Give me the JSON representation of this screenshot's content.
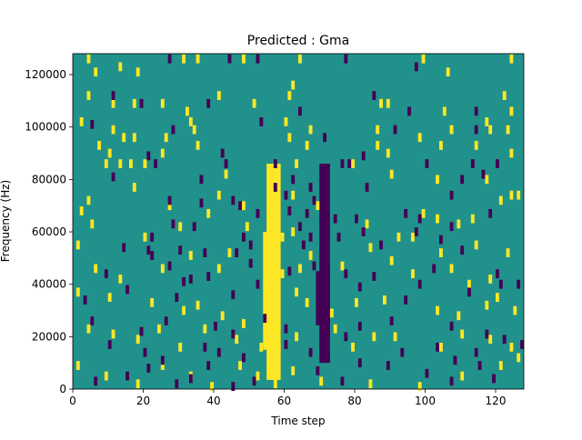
{
  "chart_data": {
    "type": "heatmap",
    "title": "Predicted : Gma",
    "xlabel": "Time step",
    "ylabel": "Frequency (Hz)",
    "xlim": [
      0,
      128
    ],
    "ylim": [
      0,
      128000
    ],
    "x_ticks": [
      0,
      20,
      40,
      60,
      80,
      100,
      120
    ],
    "y_ticks": [
      0,
      20000,
      40000,
      60000,
      80000,
      100000,
      120000
    ],
    "y_tick_labels": [
      "0",
      "20000",
      "40000",
      "60000",
      "80000",
      "100000",
      "120000"
    ],
    "grid": false,
    "legend": "none",
    "colormap": "viridis",
    "colors": {
      "background": "#21918c",
      "high": "#fde725",
      "low": "#440154"
    },
    "bands": [
      {
        "value": "high",
        "x": [
          55,
          59
        ],
        "y": [
          3500,
          86000
        ]
      },
      {
        "value": "high",
        "x": [
          54,
          58
        ],
        "y": [
          15000,
          60000
        ]
      },
      {
        "value": "low",
        "x": [
          70,
          73
        ],
        "y": [
          10000,
          86000
        ]
      },
      {
        "value": "low",
        "x": [
          69,
          73
        ],
        "y": [
          25000,
          45000
        ]
      }
    ],
    "yellow_cells": [
      [
        4,
        126000
      ],
      [
        6,
        121000
      ],
      [
        13,
        123000
      ],
      [
        18,
        121000
      ],
      [
        31,
        126000
      ],
      [
        35,
        126000
      ],
      [
        48,
        126000
      ],
      [
        64,
        126000
      ],
      [
        99,
        126000
      ],
      [
        106,
        121000
      ],
      [
        124,
        126000
      ],
      [
        4,
        112000
      ],
      [
        11,
        109000
      ],
      [
        17,
        109000
      ],
      [
        25,
        109000
      ],
      [
        32,
        106000
      ],
      [
        41,
        112000
      ],
      [
        51,
        109000
      ],
      [
        61,
        112000
      ],
      [
        62,
        116000
      ],
      [
        87,
        109000
      ],
      [
        89,
        109000
      ],
      [
        105,
        106000
      ],
      [
        122,
        112000
      ],
      [
        124,
        106000
      ],
      [
        2,
        102000
      ],
      [
        11,
        99000
      ],
      [
        14,
        96000
      ],
      [
        17,
        96000
      ],
      [
        26,
        96000
      ],
      [
        33,
        102000
      ],
      [
        34,
        99000
      ],
      [
        60,
        102000
      ],
      [
        61,
        96000
      ],
      [
        67,
        99000
      ],
      [
        86,
        99000
      ],
      [
        98,
        96000
      ],
      [
        107,
        99000
      ],
      [
        117,
        102000
      ],
      [
        118,
        99000
      ],
      [
        123,
        99000
      ],
      [
        7,
        93000
      ],
      [
        10,
        90000
      ],
      [
        13,
        86000
      ],
      [
        16,
        86000
      ],
      [
        25,
        90000
      ],
      [
        35,
        93000
      ],
      [
        66,
        93000
      ],
      [
        86,
        93000
      ],
      [
        89,
        90000
      ],
      [
        104,
        93000
      ],
      [
        114,
        93000
      ],
      [
        124,
        90000
      ],
      [
        9,
        86000
      ],
      [
        20,
        86000
      ],
      [
        43,
        82000
      ],
      [
        63,
        86000
      ],
      [
        79,
        86000
      ],
      [
        90,
        82000
      ],
      [
        103,
        80000
      ],
      [
        117,
        80000
      ],
      [
        4,
        72000
      ],
      [
        17,
        77000
      ],
      [
        27,
        70000
      ],
      [
        38,
        67000
      ],
      [
        41,
        74000
      ],
      [
        48,
        70000
      ],
      [
        56,
        74000
      ],
      [
        62,
        74000
      ],
      [
        69,
        70000
      ],
      [
        83,
        63000
      ],
      [
        99,
        67000
      ],
      [
        103,
        65000
      ],
      [
        109,
        63000
      ],
      [
        113,
        65000
      ],
      [
        121,
        72000
      ],
      [
        124,
        74000
      ],
      [
        126,
        74000
      ],
      [
        1,
        55000
      ],
      [
        20,
        58000
      ],
      [
        30,
        62000
      ],
      [
        44,
        52000
      ],
      [
        49,
        62000
      ],
      [
        56,
        55000
      ],
      [
        59,
        58000
      ],
      [
        62,
        60000
      ],
      [
        84,
        54000
      ],
      [
        96,
        58000
      ],
      [
        104,
        52000
      ],
      [
        114,
        55000
      ],
      [
        123,
        52000
      ],
      [
        6,
        46000
      ],
      [
        13,
        42000
      ],
      [
        25,
        46000
      ],
      [
        33,
        51000
      ],
      [
        41,
        46000
      ],
      [
        59,
        44000
      ],
      [
        64,
        46000
      ],
      [
        67,
        51000
      ],
      [
        76,
        47000
      ],
      [
        90,
        49000
      ],
      [
        96,
        44000
      ],
      [
        107,
        46000
      ],
      [
        112,
        40000
      ],
      [
        118,
        42000
      ],
      [
        1,
        37000
      ],
      [
        10,
        35000
      ],
      [
        22,
        33000
      ],
      [
        31,
        30000
      ],
      [
        35,
        32000
      ],
      [
        42,
        28000
      ],
      [
        48,
        25000
      ],
      [
        55,
        33000
      ],
      [
        56,
        30000
      ],
      [
        63,
        37000
      ],
      [
        66,
        33000
      ],
      [
        73,
        29000
      ],
      [
        80,
        33000
      ],
      [
        88,
        34000
      ],
      [
        103,
        30000
      ],
      [
        109,
        28000
      ],
      [
        117,
        32000
      ],
      [
        120,
        35000
      ],
      [
        125,
        30000
      ],
      [
        4,
        23000
      ],
      [
        11,
        21000
      ],
      [
        18,
        19000
      ],
      [
        24,
        23000
      ],
      [
        30,
        16000
      ],
      [
        37,
        23000
      ],
      [
        46,
        19000
      ],
      [
        53,
        16000
      ],
      [
        56,
        23000
      ],
      [
        58,
        16000
      ],
      [
        63,
        20000
      ],
      [
        74,
        23000
      ],
      [
        79,
        16000
      ],
      [
        85,
        20000
      ],
      [
        91,
        20000
      ],
      [
        104,
        16000
      ],
      [
        110,
        21000
      ],
      [
        118,
        19000
      ],
      [
        124,
        16000
      ],
      [
        1,
        9000
      ],
      [
        9,
        5000
      ],
      [
        18,
        2000
      ],
      [
        25,
        9000
      ],
      [
        33,
        5000
      ],
      [
        39,
        1000
      ],
      [
        47,
        9000
      ],
      [
        52,
        5000
      ],
      [
        57,
        2000
      ],
      [
        62,
        7000
      ],
      [
        70,
        3000
      ],
      [
        84,
        2000
      ],
      [
        98,
        1000
      ],
      [
        110,
        5000
      ],
      [
        121,
        9000
      ],
      [
        126,
        12000
      ],
      [
        2,
        68000
      ],
      [
        5,
        63000
      ],
      [
        92,
        58000
      ]
    ],
    "purple_cells": [
      [
        27,
        126000
      ],
      [
        44,
        126000
      ],
      [
        52,
        126000
      ],
      [
        77,
        126000
      ],
      [
        97,
        123000
      ],
      [
        11,
        112000
      ],
      [
        19,
        109000
      ],
      [
        38,
        109000
      ],
      [
        64,
        106000
      ],
      [
        85,
        112000
      ],
      [
        95,
        106000
      ],
      [
        114,
        106000
      ],
      [
        5,
        101000
      ],
      [
        28,
        99000
      ],
      [
        53,
        102000
      ],
      [
        71,
        96000
      ],
      [
        91,
        99000
      ],
      [
        114,
        99000
      ],
      [
        21,
        89000
      ],
      [
        42,
        90000
      ],
      [
        57,
        86000
      ],
      [
        76,
        86000
      ],
      [
        78,
        86000
      ],
      [
        82,
        89000
      ],
      [
        100,
        86000
      ],
      [
        113,
        86000
      ],
      [
        120,
        86000
      ],
      [
        23,
        86000
      ],
      [
        43,
        86000
      ],
      [
        11,
        81000
      ],
      [
        36,
        80000
      ],
      [
        57,
        77000
      ],
      [
        60,
        74000
      ],
      [
        62,
        80000
      ],
      [
        67,
        77000
      ],
      [
        68,
        72000
      ],
      [
        83,
        77000
      ],
      [
        107,
        74000
      ],
      [
        110,
        80000
      ],
      [
        116,
        82000
      ],
      [
        27,
        72000
      ],
      [
        36,
        71000
      ],
      [
        45,
        72000
      ],
      [
        47,
        70000
      ],
      [
        52,
        67000
      ],
      [
        61,
        68000
      ],
      [
        66,
        67000
      ],
      [
        74,
        65000
      ],
      [
        80,
        65000
      ],
      [
        94,
        67000
      ],
      [
        98,
        65000
      ],
      [
        118,
        67000
      ],
      [
        22,
        58000
      ],
      [
        28,
        63000
      ],
      [
        34,
        62000
      ],
      [
        48,
        58000
      ],
      [
        64,
        62000
      ],
      [
        67,
        58000
      ],
      [
        75,
        58000
      ],
      [
        82,
        60000
      ],
      [
        87,
        55000
      ],
      [
        97,
        60000
      ],
      [
        107,
        62000
      ],
      [
        14,
        54000
      ],
      [
        21,
        53000
      ],
      [
        22,
        51000
      ],
      [
        37,
        52000
      ],
      [
        46,
        52000
      ],
      [
        50,
        55000
      ],
      [
        65,
        55000
      ],
      [
        71,
        54000
      ],
      [
        104,
        57000
      ],
      [
        110,
        53000
      ],
      [
        9,
        44000
      ],
      [
        27,
        47000
      ],
      [
        38,
        43000
      ],
      [
        50,
        48000
      ],
      [
        61,
        45000
      ],
      [
        68,
        47000
      ],
      [
        77,
        44000
      ],
      [
        85,
        43000
      ],
      [
        102,
        46000
      ],
      [
        120,
        44000
      ],
      [
        126,
        40000
      ],
      [
        3,
        34000
      ],
      [
        15,
        38000
      ],
      [
        29,
        35000
      ],
      [
        45,
        36000
      ],
      [
        52,
        40000
      ],
      [
        71,
        37000
      ],
      [
        81,
        39000
      ],
      [
        94,
        34000
      ],
      [
        98,
        40000
      ],
      [
        112,
        37000
      ],
      [
        121,
        40000
      ],
      [
        5,
        26000
      ],
      [
        19,
        22000
      ],
      [
        26,
        26000
      ],
      [
        40,
        24000
      ],
      [
        45,
        21000
      ],
      [
        54,
        27000
      ],
      [
        60,
        23000
      ],
      [
        69,
        26000
      ],
      [
        77,
        20000
      ],
      [
        81,
        24000
      ],
      [
        90,
        26000
      ],
      [
        107,
        24000
      ],
      [
        117,
        21000
      ],
      [
        122,
        19000
      ],
      [
        10,
        17000
      ],
      [
        20,
        14000
      ],
      [
        25,
        11000
      ],
      [
        37,
        16000
      ],
      [
        41,
        14000
      ],
      [
        48,
        12000
      ],
      [
        60,
        17000
      ],
      [
        67,
        14000
      ],
      [
        72,
        12000
      ],
      [
        81,
        10000
      ],
      [
        93,
        14000
      ],
      [
        103,
        16000
      ],
      [
        108,
        11000
      ],
      [
        114,
        14000
      ],
      [
        127,
        17000
      ],
      [
        6,
        3000
      ],
      [
        15,
        5000
      ],
      [
        21,
        8000
      ],
      [
        29,
        2000
      ],
      [
        33,
        4000
      ],
      [
        38,
        9000
      ],
      [
        45,
        1000
      ],
      [
        51,
        3000
      ],
      [
        69,
        7000
      ],
      [
        76,
        3000
      ],
      [
        89,
        9000
      ],
      [
        100,
        6000
      ],
      [
        107,
        3000
      ],
      [
        115,
        9000
      ],
      [
        119,
        4000
      ],
      [
        30,
        53000
      ],
      [
        33,
        42000
      ],
      [
        31,
        41000
      ]
    ]
  }
}
